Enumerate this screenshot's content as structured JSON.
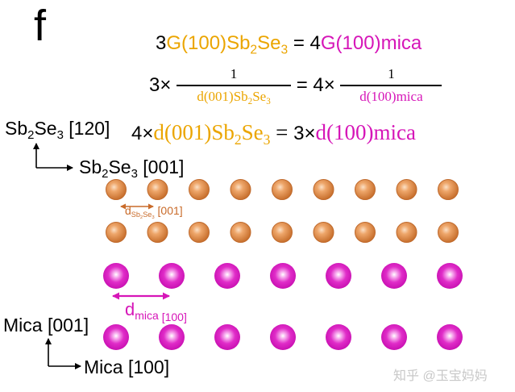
{
  "panel_label": "f",
  "equations": {
    "line1": {
      "coef_left": "3",
      "g_label": "G(100)",
      "sb": "Sb",
      "sub2": "2",
      "se": "Se",
      "sub3": "3",
      "equals": " = ",
      "coef_right": "4",
      "g_mica": "G(100)mica"
    },
    "line2": {
      "coef_left": "3×",
      "num_left": "1",
      "den_left_prefix": "d(001)Sb",
      "den_left_sub2": "2",
      "den_left_se": "Se",
      "den_left_sub3": "3",
      "equals": " = ",
      "coef_right": "4×",
      "num_right": "1",
      "den_right": "d(100)mica"
    },
    "line3": {
      "coef_left": "4×",
      "d_left": "d(001)Sb",
      "sub2": "2",
      "se": "Se",
      "sub3": "3",
      "equals": " = ",
      "coef_right": "3×",
      "d_right": "d(100)mica"
    }
  },
  "sb_axes": {
    "vertical_prefix": "Sb",
    "vertical_sub2": "2",
    "vertical_se": "Se",
    "vertical_sub3": "3",
    "vertical_suffix": " [120]",
    "horizontal_prefix": "Sb",
    "horizontal_sub2": "2",
    "horizontal_se": "Se",
    "horizontal_sub3": "3",
    "horizontal_suffix": " [001]"
  },
  "mica_axes": {
    "vertical": "Mica [001]",
    "horizontal": "Mica [100]"
  },
  "spacing_labels": {
    "sb": {
      "d": "d",
      "sub": "Sb",
      "sub2": "2",
      "se": "Se",
      "sub3": "3",
      "suffix": " [001]"
    },
    "mica": {
      "d": "d",
      "sub": "mica",
      "suffix": " [100]"
    }
  },
  "lattices": {
    "sb2se3": {
      "rows": 2,
      "columns": 9,
      "color": "#e8914a",
      "highlight": "#f8d3b0"
    },
    "mica": {
      "rows": 2,
      "columns": 7,
      "color": "#d616b8",
      "highlight": "#ffffff"
    }
  },
  "watermark": "知乎 @玉宝妈妈"
}
